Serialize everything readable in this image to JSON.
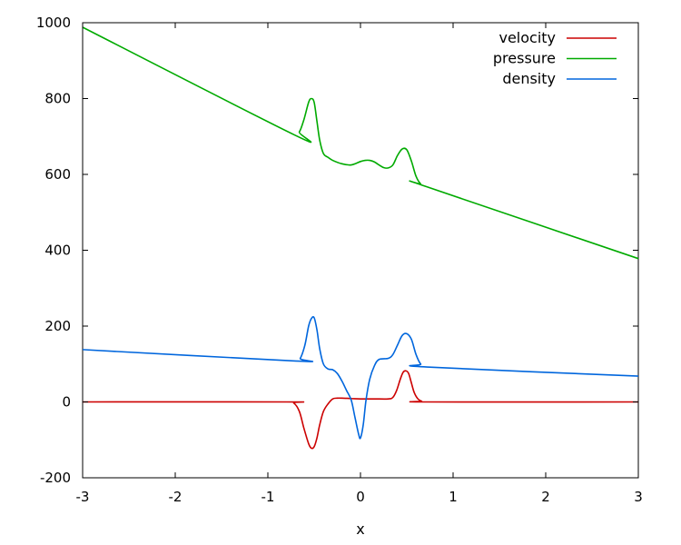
{
  "chart_data": {
    "type": "line",
    "title": "",
    "xlabel": "x",
    "ylabel": "",
    "xlim": [
      -3,
      3
    ],
    "ylim": [
      -200,
      1000
    ],
    "xticks": [
      -3,
      -2,
      -1,
      0,
      1,
      2,
      3
    ],
    "yticks": [
      -200,
      0,
      200,
      400,
      600,
      800,
      1000
    ],
    "xtick_labels": [
      "-3",
      "-2",
      "-1",
      "0",
      "1",
      "2",
      "3"
    ],
    "ytick_labels": [
      "-200",
      "0",
      "200",
      "400",
      "600",
      "800",
      "1000"
    ],
    "grid": false,
    "legend_position": "top-right",
    "series": [
      {
        "name": "velocity",
        "color": "#cc0000",
        "x": [
          -3,
          -0.8,
          -0.72,
          -0.66,
          -0.61,
          -0.56,
          -0.53,
          -0.5,
          -0.47,
          -0.44,
          -0.4,
          -0.35,
          -0.3,
          -0.25,
          -0.2,
          -0.1,
          0,
          0.15,
          0.3,
          0.35,
          0.39,
          0.43,
          0.46,
          0.49,
          0.52,
          0.55,
          0.58,
          0.62,
          0.66,
          0.72,
          3
        ],
        "y": [
          0,
          0,
          -3,
          -25,
          -70,
          -110,
          -122,
          -118,
          -95,
          -60,
          -25,
          -5,
          8,
          10,
          10,
          9,
          8,
          8,
          8,
          12,
          30,
          60,
          78,
          82,
          75,
          50,
          25,
          8,
          2,
          0,
          0
        ]
      },
      {
        "name": "pressure",
        "color": "#00aa00",
        "x": [
          -3,
          -0.72,
          -0.66,
          -0.61,
          -0.56,
          -0.53,
          -0.5,
          -0.47,
          -0.44,
          -0.4,
          -0.35,
          -0.3,
          -0.2,
          -0.1,
          0,
          0.05,
          0.1,
          0.15,
          0.2,
          0.25,
          0.3,
          0.35,
          0.4,
          0.45,
          0.5,
          0.55,
          0.6,
          0.65,
          0.72,
          3
        ],
        "y": [
          988,
          705,
          712,
          745,
          790,
          800,
          790,
          740,
          690,
          655,
          645,
          637,
          628,
          625,
          634,
          637,
          637,
          633,
          625,
          618,
          617,
          625,
          650,
          667,
          665,
          635,
          595,
          575,
          567,
          378
        ]
      },
      {
        "name": "density",
        "color": "#0066dd",
        "x": [
          -3,
          -0.7,
          -0.65,
          -0.6,
          -0.56,
          -0.53,
          -0.5,
          -0.47,
          -0.44,
          -0.4,
          -0.35,
          -0.3,
          -0.25,
          -0.2,
          -0.15,
          -0.1,
          -0.06,
          -0.02,
          0,
          0.03,
          0.06,
          0.1,
          0.15,
          0.2,
          0.3,
          0.35,
          0.4,
          0.45,
          0.5,
          0.55,
          0.6,
          0.65,
          0.72,
          3
        ],
        "y": [
          138,
          108,
          115,
          150,
          200,
          220,
          222,
          190,
          140,
          100,
          87,
          85,
          75,
          55,
          30,
          5,
          -40,
          -85,
          -95,
          -60,
          5,
          60,
          95,
          112,
          115,
          125,
          150,
          175,
          180,
          165,
          125,
          100,
          92,
          68
        ]
      }
    ]
  }
}
